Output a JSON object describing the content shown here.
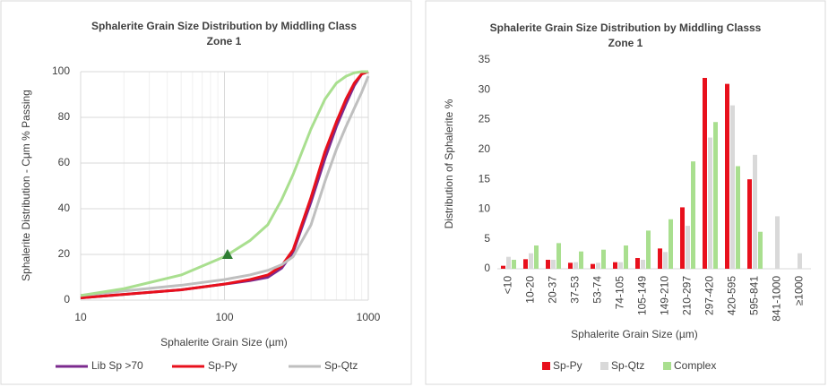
{
  "chart_data": [
    {
      "type": "line",
      "title": [
        "Sphalerite Grain Size Distribution by Middling Class",
        "Zone 1"
      ],
      "x_label": "Sphalerite Grain Size (µm)",
      "y_label": "Sphalerite Distribution - Cμm % Passing",
      "log_x": true,
      "x": [
        10,
        20,
        50,
        100,
        150,
        200,
        250,
        300,
        400,
        500,
        600,
        700,
        800,
        900,
        1000
      ],
      "series": [
        {
          "name": "Lib Sp >70",
          "color": "#7b2a8e",
          "values": [
            1,
            2.5,
            4.5,
            7,
            8.5,
            10,
            14,
            21,
            43,
            62,
            76,
            86,
            94,
            99,
            100
          ]
        },
        {
          "name": "Sp-Py",
          "color": "#e8101c",
          "values": [
            1,
            2.5,
            4.5,
            7,
            9,
            11,
            15,
            22,
            45,
            65,
            78,
            88,
            95,
            99,
            100
          ]
        },
        {
          "name": "Sp-Qtz",
          "color": "#bfbfbf",
          "values": [
            2,
            4,
            6.5,
            9,
            11,
            13,
            15.5,
            19,
            33,
            52,
            66,
            76,
            84,
            91,
            98
          ]
        },
        {
          "color": "#a9df8f",
          "values": [
            2,
            5,
            11,
            19,
            26,
            33,
            44,
            55,
            75,
            88,
            95,
            98,
            99.5,
            100,
            100
          ]
        }
      ],
      "marker": {
        "x": 105,
        "y": 20,
        "color": "#2e7d32"
      },
      "xlim": [
        10,
        1000
      ],
      "xticks": [
        10,
        100,
        1000
      ],
      "xminor": [
        20,
        30,
        40,
        50,
        60,
        70,
        80,
        90,
        200,
        300,
        400,
        500,
        600,
        700,
        800,
        900
      ],
      "ylim": [
        0,
        100
      ],
      "yticks": [
        0,
        20,
        40,
        60,
        80,
        100
      ],
      "grid": true
    },
    {
      "type": "bar",
      "title": [
        "Sphalerite Grain Size Distribution by Middling Classs",
        "Zone 1"
      ],
      "x_label": "Sphalerite Grain Size (µm)",
      "y_label": "Distribution of Sphalerite %",
      "categories": [
        "<10",
        "10-20",
        "20-37",
        "37-53",
        "53-74",
        "74-105",
        "105-149",
        "149-210",
        "210-297",
        "297-420",
        "420-595",
        "595-841",
        "841-1000",
        "≥1000"
      ],
      "series": [
        {
          "name": "Sp-Py",
          "color": "#e8101c",
          "values": [
            0.5,
            1.6,
            1.5,
            1.0,
            0.8,
            1.1,
            1.8,
            3.4,
            10.3,
            32,
            31,
            15,
            0,
            0
          ]
        },
        {
          "name": "Sp-Qtz",
          "color": "#d9d9d9",
          "values": [
            2.0,
            2.6,
            1.5,
            1.1,
            1.0,
            1.1,
            1.5,
            2.8,
            7.2,
            22,
            27.4,
            19.1,
            8.8,
            2.6
          ]
        },
        {
          "name": "Complex",
          "color": "#a9df8f",
          "values": [
            1.5,
            3.9,
            4.3,
            2.9,
            3.2,
            3.9,
            6.4,
            8.3,
            18,
            24.6,
            17.2,
            6.2,
            0,
            0
          ]
        }
      ],
      "ylim": [
        0,
        35
      ],
      "yticks": [
        0,
        5,
        10,
        15,
        20,
        25,
        30,
        35
      ],
      "grid": false
    }
  ]
}
